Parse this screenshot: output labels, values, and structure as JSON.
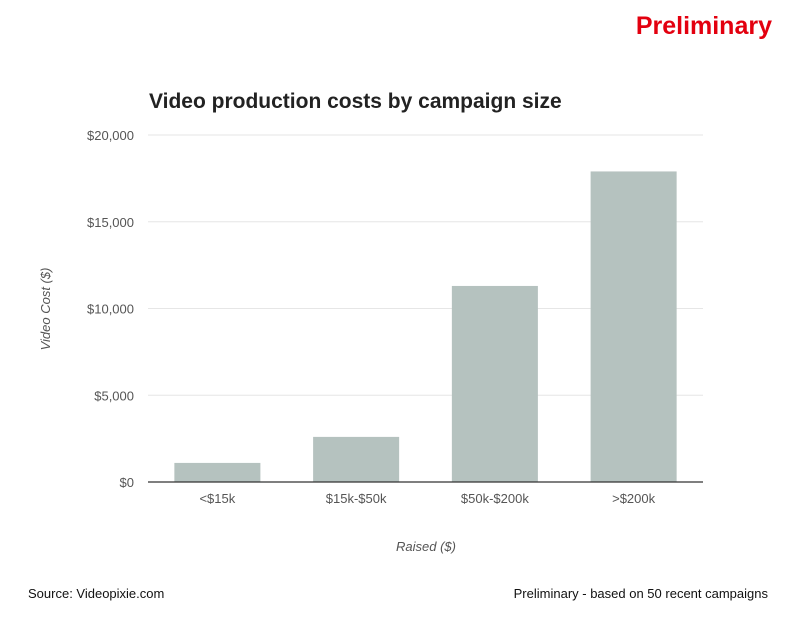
{
  "badge": "Preliminary",
  "footer": {
    "source": "Source:  Videopixie.com",
    "note": "Preliminary - based on 50 recent campaigns"
  },
  "chart_data": {
    "type": "bar",
    "title": "Video production costs by campaign size",
    "xlabel": "Raised ($)",
    "ylabel": "Video Cost ($)",
    "categories": [
      "<$15k",
      "$15k-$50k",
      "$50k-$200k",
      ">$200k"
    ],
    "values": [
      1100,
      2600,
      11300,
      17900
    ],
    "ylim": [
      0,
      20000
    ],
    "yticks": [
      0,
      5000,
      10000,
      15000,
      20000
    ],
    "ytick_labels": [
      "$0",
      "$5,000",
      "$10,000",
      "$15,000",
      "$20,000"
    ],
    "grid": true,
    "legend": "none",
    "bar_color": "#b5c2bf",
    "grid_color": "#e6e6e6",
    "axis_color": "#333333"
  }
}
